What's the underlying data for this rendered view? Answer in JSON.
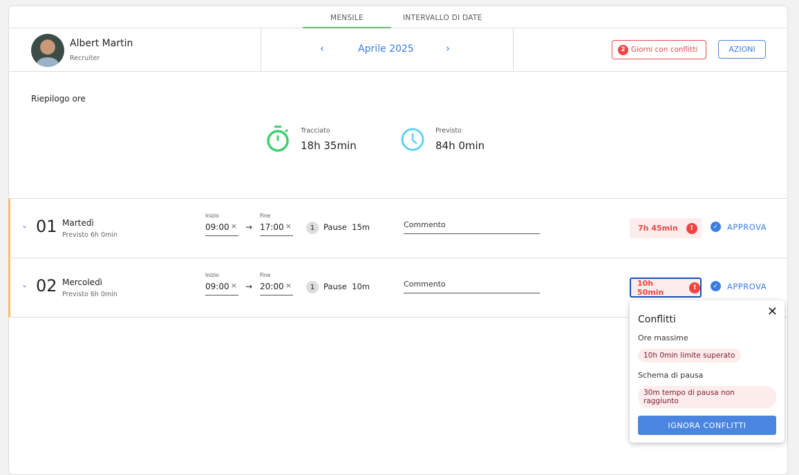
{
  "tabs": [
    {
      "label": "MENSILE",
      "active": true
    },
    {
      "label": "INTERVALLO DI DATE",
      "active": false
    }
  ],
  "user": {
    "name": "Albert Martin",
    "role": "Recruiter"
  },
  "period": {
    "label": "Aprile 2025"
  },
  "conflicts_button": {
    "count": "2",
    "label": "Giorni con conflitti"
  },
  "actions_button": "AZIONI",
  "summary": {
    "title": "Riepilogo ore",
    "tracked": {
      "label": "Tracciato",
      "value": "18h 35min"
    },
    "planned": {
      "label": "Previsto",
      "value": "84h 0min"
    }
  },
  "colors": {
    "accent": "#3b7de0",
    "error": "#f04444",
    "tracked": "#3ecf6e",
    "planned": "#5fd0f5",
    "row_marker": "#f6c06a"
  },
  "days": [
    {
      "num": "01",
      "name": "Martedì",
      "planned": "Previsto 6h 0min",
      "start_label": "Inizio",
      "start": "09:00",
      "end_label": "Fine",
      "end": "17:00",
      "pause_count": "1",
      "pause_label": "Pause",
      "pause": "15m",
      "comment_placeholder": "Commento",
      "total": "7h 45min",
      "approve": "APPROVA"
    },
    {
      "num": "02",
      "name": "Mercoledì",
      "planned": "Previsto 6h 0min",
      "start_label": "Inizio",
      "start": "09:00",
      "end_label": "Fine",
      "end": "20:00",
      "pause_count": "1",
      "pause_label": "Pause",
      "pause": "10m",
      "comment_placeholder": "Commento",
      "total": "10h 50min",
      "approve": "APPROVA"
    }
  ],
  "popover": {
    "title": "Conflitti",
    "sections": [
      {
        "title": "Ore massime",
        "message": "10h 0min limite superato"
      },
      {
        "title": "Schema di pausa",
        "message": "30m tempo di pausa non raggiunto"
      }
    ],
    "ignore_button": "IGNORA CONFLITTI"
  }
}
